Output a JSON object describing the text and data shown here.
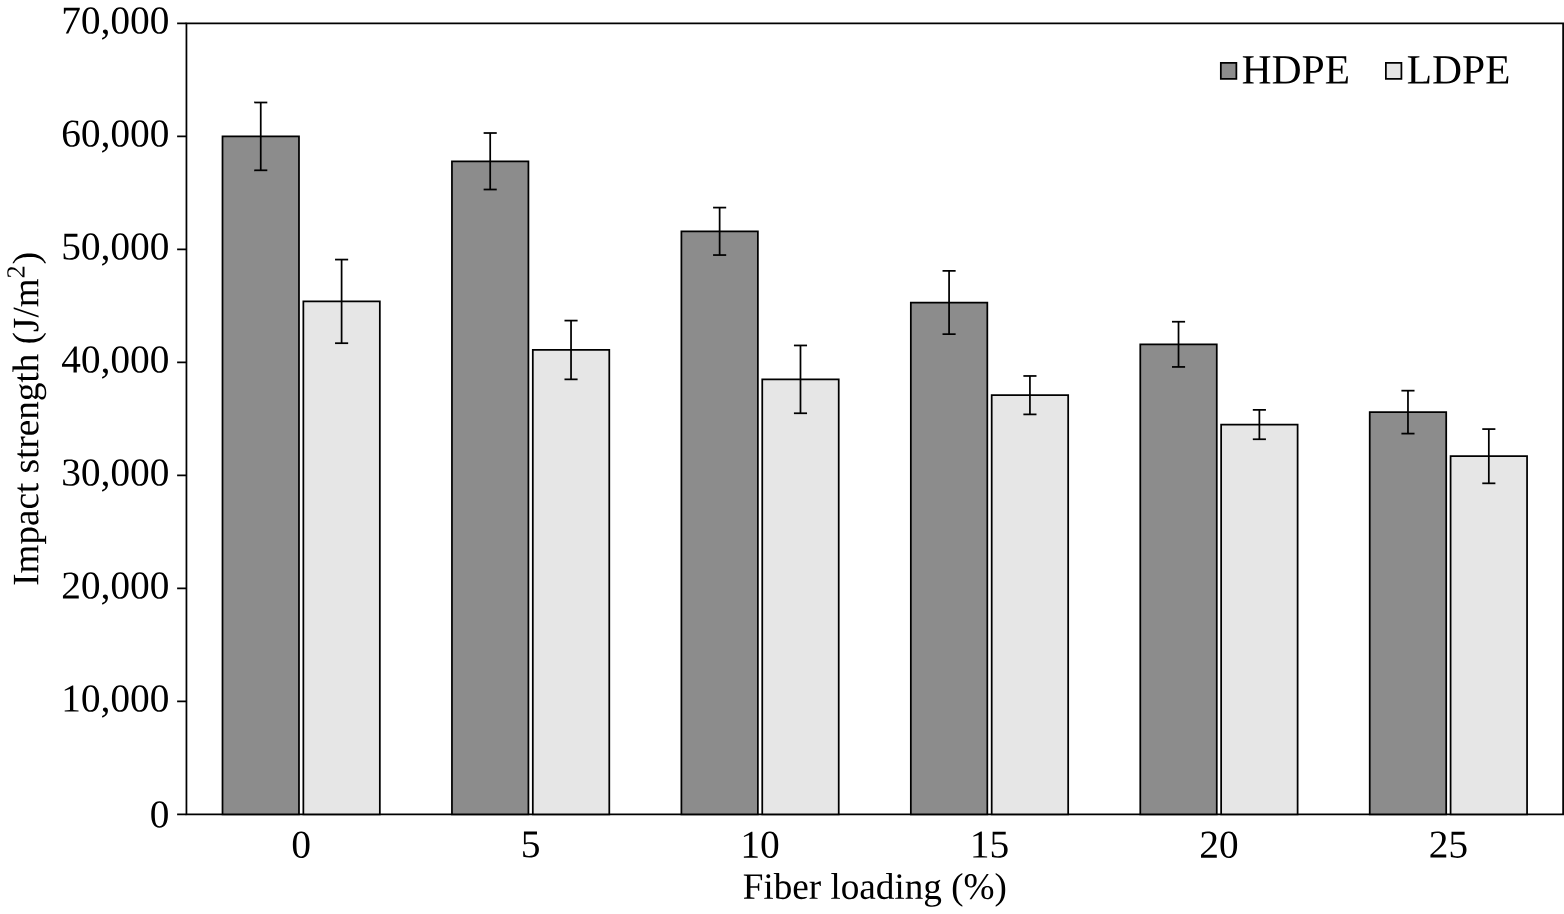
{
  "chart_data": {
    "type": "bar",
    "xlabel": "Fiber loading (%)",
    "ylabel": "Impact strength (J/m$^{2}$)",
    "categories": [
      "0",
      "5",
      "10",
      "15",
      "20",
      "25"
    ],
    "series": [
      {
        "name": "HDPE",
        "color": "#8c8c8c",
        "values": [
          60000,
          57800,
          51600,
          45300,
          41600,
          35600
        ],
        "errors": [
          3000,
          2500,
          2100,
          2800,
          2000,
          1900
        ]
      },
      {
        "name": "LDPE",
        "color": "#e6e6e6",
        "values": [
          45400,
          41100,
          38500,
          37100,
          34500,
          31700
        ],
        "errors": [
          3700,
          2600,
          3000,
          1700,
          1300,
          2400
        ]
      }
    ],
    "ylim": [
      0,
      70000
    ],
    "yticks": [
      {
        "value": 0,
        "label": "0"
      },
      {
        "value": 10000,
        "label": "10,000"
      },
      {
        "value": 20000,
        "label": "20,000"
      },
      {
        "value": 30000,
        "label": "30,000"
      },
      {
        "value": 40000,
        "label": "40,000"
      },
      {
        "value": 50000,
        "label": "50,000"
      },
      {
        "value": 60000,
        "label": "60,000"
      },
      {
        "value": 70000,
        "label": "70,000"
      }
    ],
    "grid": false,
    "legend": "top right"
  }
}
